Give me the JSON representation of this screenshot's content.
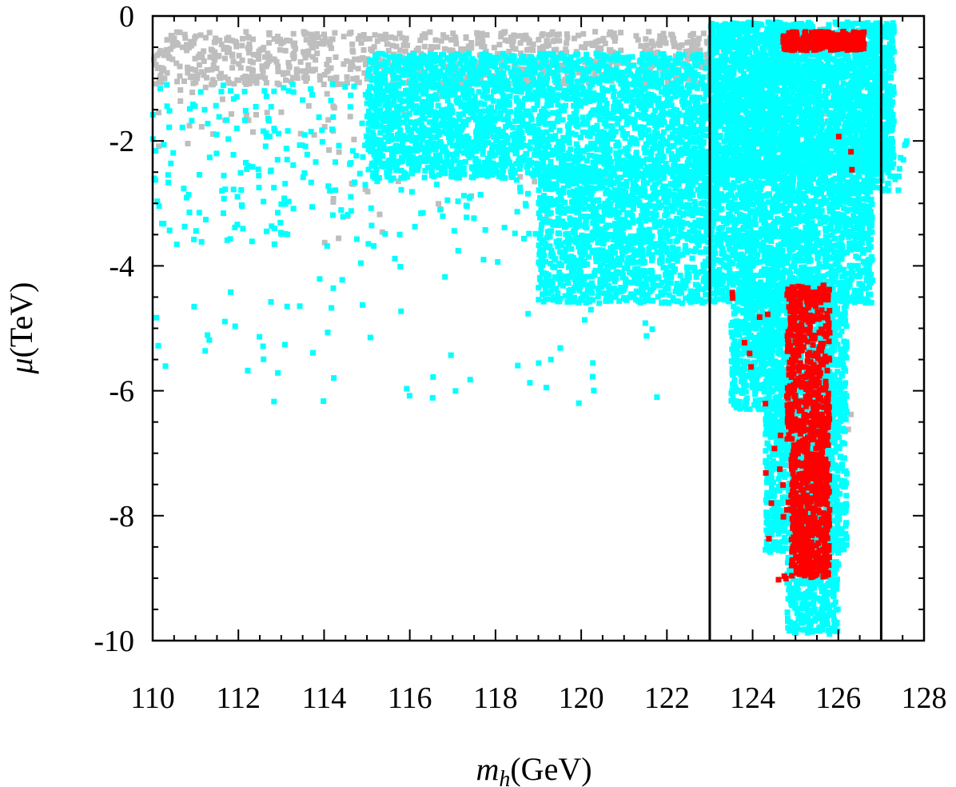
{
  "chart_data": {
    "type": "scatter",
    "title": "",
    "xlabel": "m_h(GeV)",
    "ylabel": "μ(TeV)",
    "xlabel_parts": {
      "var": "m",
      "sub": "h",
      "unit": "(GeV)"
    },
    "ylabel_parts": {
      "var": "μ",
      "unit": "(TeV)"
    },
    "xlim": [
      110,
      128
    ],
    "ylim": [
      -10,
      0
    ],
    "xticks": [
      110,
      112,
      114,
      116,
      118,
      120,
      122,
      124,
      126,
      128
    ],
    "yticks": [
      0,
      -2,
      -4,
      -6,
      -8,
      -10
    ],
    "x_minor_step": 0.5,
    "y_minor_step": 0.5,
    "grid": false,
    "legend": "none",
    "vertical_lines": [
      123,
      127
    ],
    "series": [
      {
        "color": "#bebebe",
        "regions": [
          {
            "x": [
              110,
              123
            ],
            "y": [
              -1.1,
              -0.25
            ],
            "n": 900
          },
          {
            "x": [
              110,
              118
            ],
            "y": [
              -2.2,
              -0.9
            ],
            "n": 60
          },
          {
            "x": [
              114,
              122
            ],
            "y": [
              -3.8,
              -2.5
            ],
            "n": 25
          },
          {
            "x": [
              123,
              126.5
            ],
            "y": [
              -2.5,
              -0.2
            ],
            "n": 80
          },
          {
            "x": [
              125,
              126.5
            ],
            "y": [
              -6.8,
              -5.8
            ],
            "n": 12
          }
        ]
      },
      {
        "color": "#00ffff",
        "regions": [
          {
            "x": [
              115,
              123
            ],
            "y": [
              -2.6,
              -0.6
            ],
            "n": 2600
          },
          {
            "x": [
              119,
              123
            ],
            "y": [
              -4.6,
              -2.4
            ],
            "n": 1400
          },
          {
            "x": [
              110,
              119
            ],
            "y": [
              -3.5,
              -1.0
            ],
            "n": 280
          },
          {
            "x": [
              110,
              122
            ],
            "y": [
              -6.2,
              -3.5
            ],
            "n": 80
          },
          {
            "x": [
              123,
              127.3
            ],
            "y": [
              -2.5,
              -0.1
            ],
            "n": 3200
          },
          {
            "x": [
              123,
              126.8
            ],
            "y": [
              -4.6,
              -2.3
            ],
            "n": 1800
          },
          {
            "x": [
              123.5,
              126.2
            ],
            "y": [
              -6.3,
              -4.4
            ],
            "n": 1100
          },
          {
            "x": [
              124.3,
              126.2
            ],
            "y": [
              -8.6,
              -6.2
            ],
            "n": 900
          },
          {
            "x": [
              124.8,
              126
            ],
            "y": [
              -9.9,
              -8.5
            ],
            "n": 350
          },
          {
            "x": [
              126.7,
              127.6
            ],
            "y": [
              -2.8,
              -2.0
            ],
            "n": 40
          }
        ]
      },
      {
        "color": "#ff0000",
        "regions": [
          {
            "x": [
              124.7,
              126.6
            ],
            "y": [
              -0.55,
              -0.25
            ],
            "n": 320
          },
          {
            "x": [
              124.8,
              125.8
            ],
            "y": [
              -6.8,
              -4.3
            ],
            "n": 480
          },
          {
            "x": [
              124.9,
              125.8
            ],
            "y": [
              -9.0,
              -6.8
            ],
            "n": 520
          },
          {
            "x": [
              124.3,
              125.1
            ],
            "y": [
              -9.5,
              -6.0
            ],
            "n": 18
          },
          {
            "x": [
              123.2,
              124.6
            ],
            "y": [
              -6.3,
              -4.0
            ],
            "n": 8
          },
          {
            "x": [
              125.8,
              126.7
            ],
            "y": [
              -2.6,
              -1.9
            ],
            "n": 3
          }
        ]
      }
    ]
  }
}
